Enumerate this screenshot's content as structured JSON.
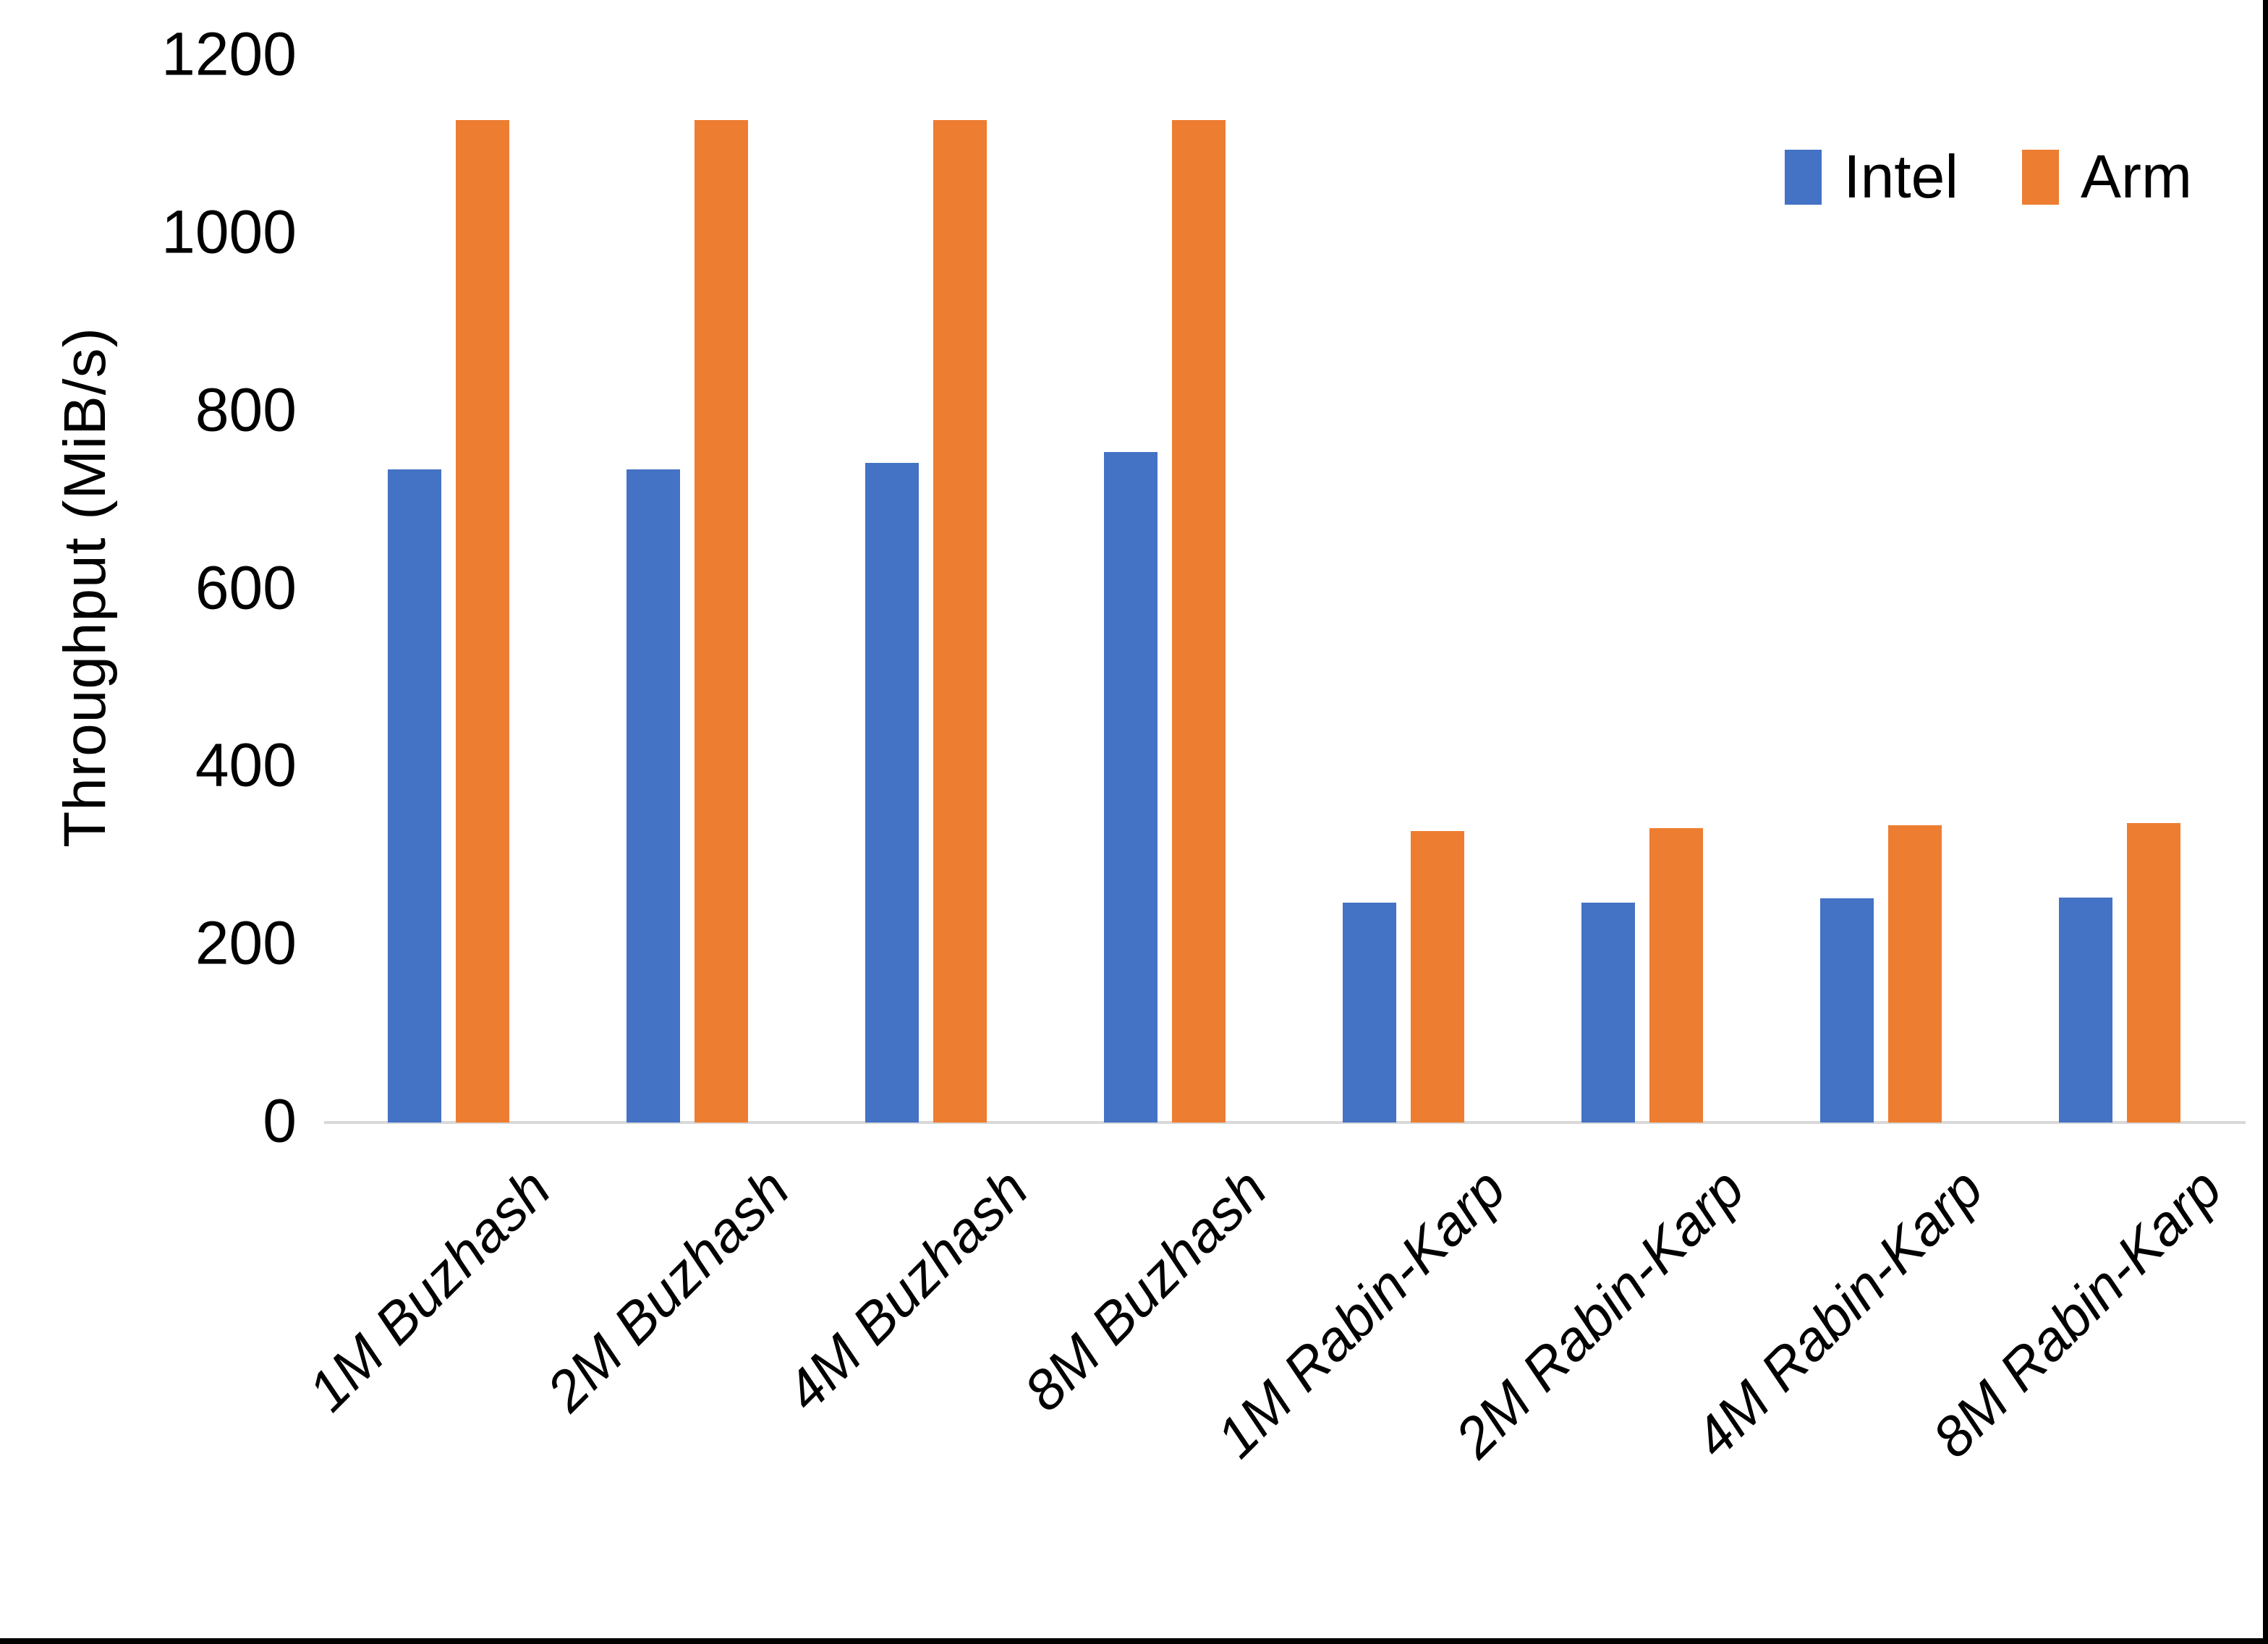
{
  "chart_data": {
    "type": "bar",
    "title": "",
    "ylabel": "Throughput (MiB/s)",
    "xlabel": "",
    "ylim": [
      0,
      1200
    ],
    "ytick_step": 200,
    "yticks": [
      "1200",
      "1000",
      "800",
      "600",
      "400",
      "200",
      "0"
    ],
    "ytick_values": [
      1200,
      1000,
      800,
      600,
      400,
      200,
      0
    ],
    "grid": false,
    "legend_position": "top-right",
    "categories": [
      "1M Buzhash",
      "2M Buzhash",
      "4M Buzhash",
      "8M Buzhash",
      "1M Rabin-Karp",
      "2M Rabin-Karp",
      "4M Rabin-Karp",
      "8M Rabin-Karp"
    ],
    "series": [
      {
        "name": "Intel",
        "color": "#4472C4",
        "values": [
          735,
          735,
          742,
          754,
          247,
          247,
          252,
          253
        ]
      },
      {
        "name": "Arm",
        "color": "#ED7D31",
        "values": [
          1128,
          1128,
          1128,
          1128,
          328,
          331,
          334,
          337
        ]
      }
    ]
  },
  "colors": {
    "intel": "#4472C4",
    "arm": "#ED7D31",
    "axis_line": "#d9d9d9",
    "text": "#000000",
    "window_border": "#000000"
  }
}
